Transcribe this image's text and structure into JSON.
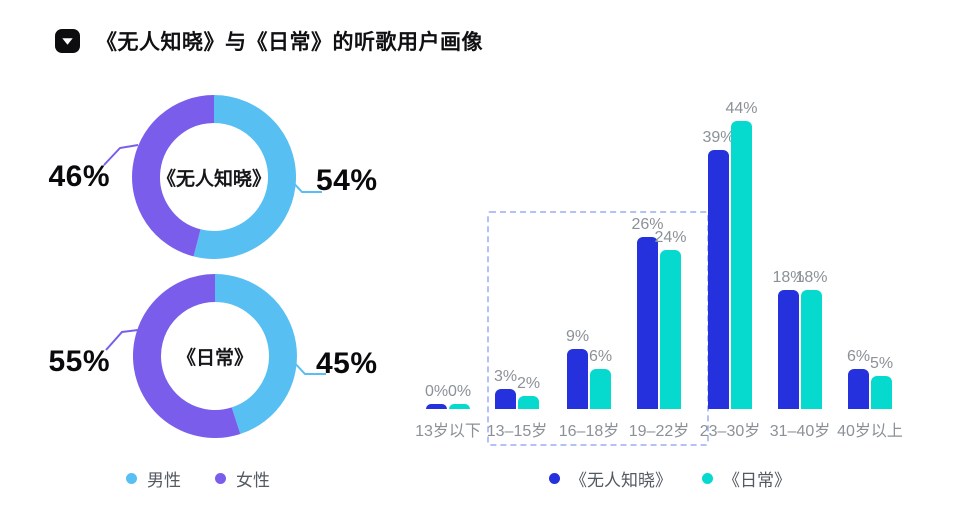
{
  "header": {
    "title": "《无人知晓》与《日常》的听歌用户画像"
  },
  "colors": {
    "male": "#58BFF3",
    "female": "#7A5EEB",
    "song1": "#2531DC",
    "song2": "#06DACF",
    "label_gray": "#8B9197",
    "legend_text": "#545A62",
    "highlight_border": "#B3C1F8",
    "title_text": "#101012",
    "percent_text": "#0A0A0C"
  },
  "chart_data": [
    {
      "id": "donut-song1",
      "type": "pie",
      "style": "donut",
      "center_label": "《无人知晓》",
      "slices": [
        {
          "label": "男性",
          "value": 54,
          "display": "54%",
          "color_key": "male",
          "callout": "right"
        },
        {
          "label": "女性",
          "value": 46,
          "display": "46%",
          "color_key": "female",
          "callout": "left"
        }
      ]
    },
    {
      "id": "donut-song2",
      "type": "pie",
      "style": "donut",
      "center_label": "《日常》",
      "slices": [
        {
          "label": "男性",
          "value": 45,
          "display": "45%",
          "color_key": "male",
          "callout": "right"
        },
        {
          "label": "女性",
          "value": 55,
          "display": "55%",
          "color_key": "female",
          "callout": "left"
        }
      ]
    },
    {
      "id": "age-bars",
      "type": "bar",
      "categories": [
        "13岁以下",
        "13–15岁",
        "16–18岁",
        "19–22岁",
        "23–30岁",
        "31–40岁",
        "40岁以上"
      ],
      "series": [
        {
          "name": "《无人知晓》",
          "color_key": "song1",
          "values": [
            0,
            3,
            9,
            26,
            39,
            18,
            6
          ]
        },
        {
          "name": "《日常》",
          "color_key": "song2",
          "values": [
            0,
            2,
            6,
            24,
            44,
            18,
            5
          ]
        }
      ],
      "value_suffix": "%",
      "ylim": [
        0,
        44
      ],
      "grid": false,
      "legend_position": "bottom",
      "highlight_box": {
        "from_category": "13–15岁",
        "to_category": "19–22岁"
      }
    }
  ],
  "legends": {
    "gender": [
      {
        "label": "男性",
        "color_key": "male"
      },
      {
        "label": "女性",
        "color_key": "female"
      }
    ],
    "songs": [
      {
        "label": "《无人知晓》",
        "color_key": "song1"
      },
      {
        "label": "《日常》",
        "color_key": "song2"
      }
    ]
  }
}
